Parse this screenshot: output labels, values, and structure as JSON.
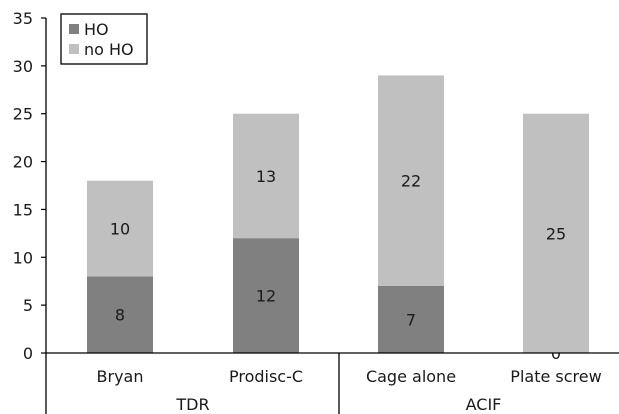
{
  "chart_data": {
    "type": "bar",
    "stacked": true,
    "categories": [
      "Bryan",
      "Prodisc-C",
      "Cage alone",
      "Plate screw"
    ],
    "groups": [
      {
        "label": "TDR",
        "categories": [
          "Bryan",
          "Prodisc-C"
        ]
      },
      {
        "label": "ACIF",
        "categories": [
          "Cage alone",
          "Plate screw"
        ]
      }
    ],
    "series": [
      {
        "name": "HO",
        "values": [
          8,
          12,
          7,
          0
        ],
        "color": "#808080"
      },
      {
        "name": "no HO",
        "values": [
          10,
          13,
          22,
          25
        ],
        "color": "#c0c0c0"
      }
    ],
    "ylim": [
      0,
      35
    ],
    "yticks": [
      0,
      5,
      10,
      15,
      20,
      25,
      30,
      35
    ],
    "legend_position": "top-left",
    "grid": false,
    "title": "",
    "xlabel": "",
    "ylabel": ""
  }
}
